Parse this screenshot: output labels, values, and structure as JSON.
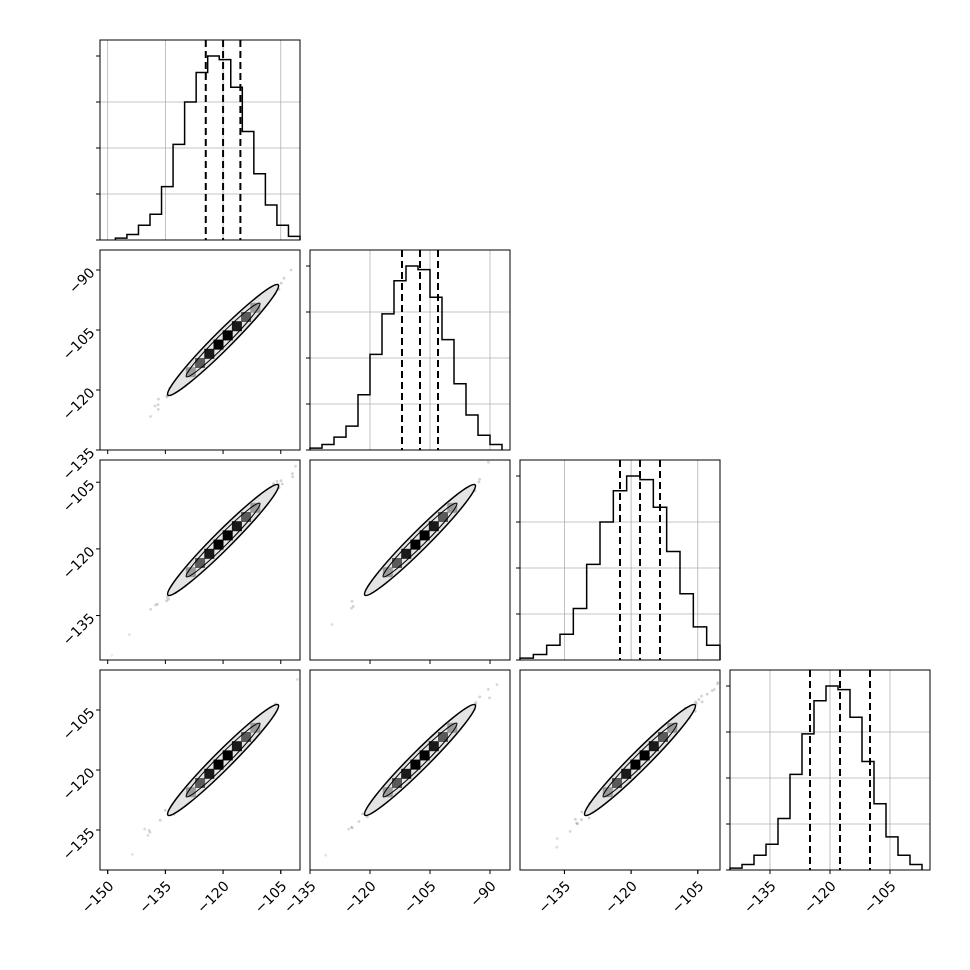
{
  "chart_data": {
    "type": "corner",
    "n_params": 4,
    "colors": {
      "line": "#000000",
      "grid": "#b0b0b0",
      "contour_fill": "#e4e4e4",
      "points": "#555555"
    },
    "grid": true,
    "params": [
      {
        "median": -120.0,
        "q16": -124.5,
        "q84": -115.5,
        "range": [
          -152,
          -100
        ],
        "ticks": [
          -150,
          -135,
          -120,
          -105
        ],
        "tick_labels": [
          "−150",
          "−135",
          "−120",
          "−105"
        ]
      },
      {
        "median": -107.5,
        "q16": -112.0,
        "q84": -103.0,
        "range": [
          -135,
          -85
        ],
        "ticks": [
          -135,
          -120,
          -105,
          -90
        ],
        "tick_labels": [
          "−135",
          "−120",
          "−105",
          "−90"
        ]
      },
      {
        "median": -118.0,
        "q16": -122.5,
        "q84": -113.5,
        "range": [
          -145,
          -100
        ],
        "ticks": [
          -135,
          -120,
          -105
        ],
        "tick_labels": [
          "−135",
          "−120",
          "−105"
        ]
      },
      {
        "median": -117.5,
        "q16": -125.0,
        "q84": -110.0,
        "range": [
          -145,
          -95
        ],
        "ticks": [
          -135,
          -120,
          -105
        ],
        "tick_labels": [
          "−135",
          "−120",
          "−105"
        ]
      }
    ],
    "histograms": [
      {
        "param": 0,
        "bins": [
          -148,
          -145,
          -142,
          -139,
          -136,
          -133,
          -130,
          -127,
          -124,
          -121,
          -118,
          -115,
          -112,
          -109,
          -106,
          -103,
          -100
        ],
        "counts": [
          1,
          3,
          8,
          14,
          29,
          52,
          75,
          91,
          100,
          98,
          83,
          59,
          36,
          19,
          8,
          2
        ]
      },
      {
        "param": 1,
        "bins": [
          -135,
          -132,
          -129,
          -126,
          -123,
          -120,
          -117,
          -114,
          -111,
          -108,
          -105,
          -102,
          -99,
          -96,
          -93,
          -90,
          -87
        ],
        "counts": [
          1,
          3,
          7,
          13,
          30,
          52,
          74,
          92,
          100,
          98,
          83,
          60,
          36,
          19,
          8,
          3
        ]
      },
      {
        "param": 2,
        "bins": [
          -145,
          -142,
          -139,
          -136,
          -133,
          -130,
          -127,
          -124,
          -121,
          -118,
          -115,
          -112,
          -109,
          -106,
          -103,
          -100
        ],
        "counts": [
          1,
          3,
          8,
          14,
          28,
          52,
          75,
          92,
          100,
          98,
          83,
          59,
          36,
          18,
          8
        ]
      },
      {
        "param": 3,
        "bins": [
          -145,
          -142,
          -139,
          -136,
          -133,
          -130,
          -127,
          -124,
          -121,
          -118,
          -115,
          -112,
          -109,
          -106,
          -103,
          -100,
          -97
        ],
        "counts": [
          1,
          3,
          8,
          14,
          28,
          52,
          74,
          92,
          100,
          98,
          83,
          59,
          36,
          18,
          8,
          3
        ]
      }
    ],
    "pairs": [
      {
        "x": 0,
        "y": 1,
        "center": [
          -120.0,
          -107.5
        ]
      },
      {
        "x": 0,
        "y": 2,
        "center": [
          -120.0,
          -118.0
        ]
      },
      {
        "x": 1,
        "y": 2,
        "center": [
          -107.5,
          -118.0
        ]
      },
      {
        "x": 0,
        "y": 3,
        "center": [
          -120.0,
          -117.5
        ]
      },
      {
        "x": 1,
        "y": 3,
        "center": [
          -107.5,
          -117.5
        ]
      },
      {
        "x": 2,
        "y": 3,
        "center": [
          -118.0,
          -117.5
        ]
      }
    ]
  }
}
